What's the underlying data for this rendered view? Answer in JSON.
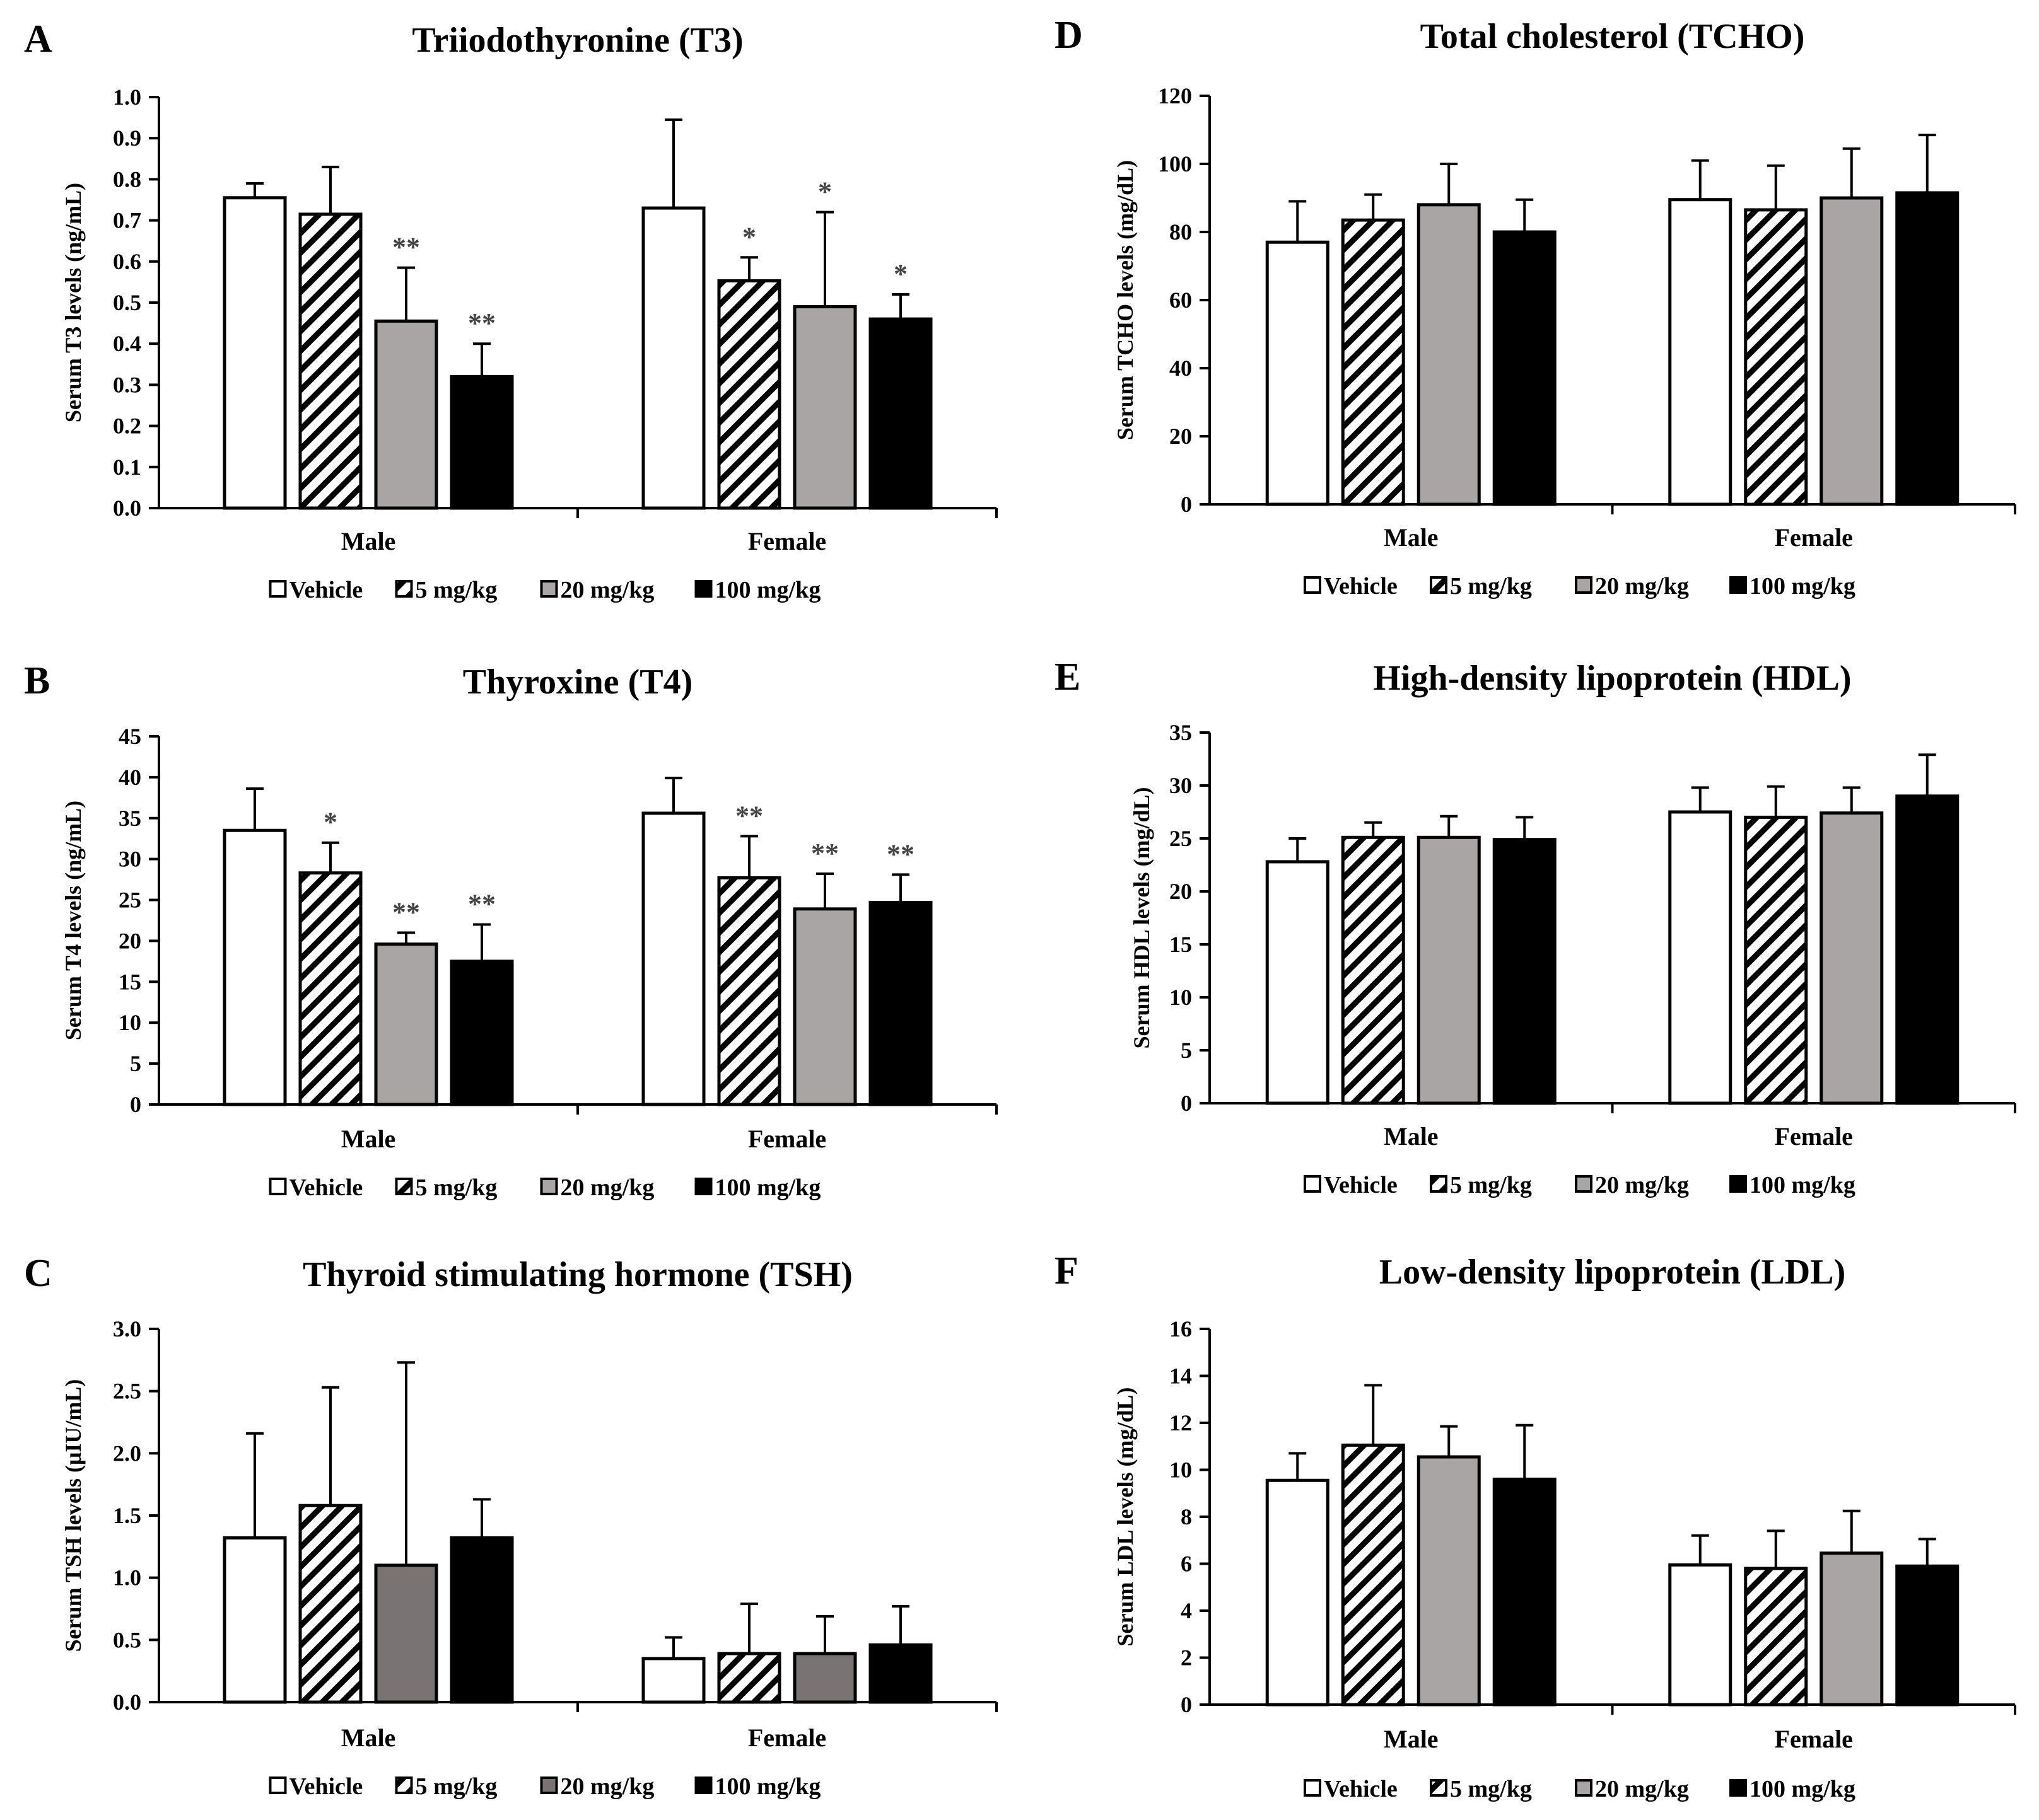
{
  "legend_labels": [
    "Vehicle",
    "5 mg/kg",
    "20 mg/kg",
    "100 mg/kg"
  ],
  "chart_data": [
    {
      "panel": "A",
      "type": "bar",
      "title": "Triiodothyronine (T3)",
      "ylabel": "Serum T3 levels (ng/mL)",
      "ylim": [
        0,
        1.0
      ],
      "yticks": [
        "0.0",
        "0.1",
        "0.2",
        "0.3",
        "0.4",
        "0.5",
        "0.6",
        "0.7",
        "0.8",
        "0.9",
        "1.0"
      ],
      "categories": [
        "Male",
        "Female"
      ],
      "series": [
        {
          "name": "Vehicle",
          "fill": "#ffffff",
          "pattern": "none",
          "values": [
            0.755,
            0.73
          ],
          "errors": [
            0.035,
            0.215
          ],
          "sig": [
            "",
            ""
          ]
        },
        {
          "name": "5 mg/kg",
          "fill": "#ffffff",
          "pattern": "hatch",
          "values": [
            0.715,
            0.553
          ],
          "errors": [
            0.115,
            0.057
          ],
          "sig": [
            "",
            "*"
          ]
        },
        {
          "name": "20 mg/kg",
          "fill": "#a9a5a4",
          "pattern": "none",
          "values": [
            0.455,
            0.49
          ],
          "errors": [
            0.13,
            0.23
          ],
          "sig": [
            "**",
            "*"
          ]
        },
        {
          "name": "100 mg/kg",
          "fill": "#000000",
          "pattern": "none",
          "values": [
            0.32,
            0.46
          ],
          "errors": [
            0.08,
            0.06
          ],
          "sig": [
            "**",
            "*"
          ]
        }
      ],
      "legend": "bottom"
    },
    {
      "panel": "B",
      "type": "bar",
      "title": "Thyroxine (T4)",
      "ylabel": "Serum T4 levels (ng/mL)",
      "ylim": [
        0,
        45
      ],
      "yticks": [
        "0",
        "5",
        "10",
        "15",
        "20",
        "25",
        "30",
        "35",
        "40",
        "45"
      ],
      "categories": [
        "Male",
        "Female"
      ],
      "series": [
        {
          "name": "Vehicle",
          "fill": "#ffffff",
          "pattern": "none",
          "values": [
            33.5,
            35.6
          ],
          "errors": [
            5.1,
            4.3
          ],
          "sig": [
            "",
            ""
          ]
        },
        {
          "name": "5 mg/kg",
          "fill": "#ffffff",
          "pattern": "hatch",
          "values": [
            28.3,
            27.7
          ],
          "errors": [
            3.7,
            5.1
          ],
          "sig": [
            "*",
            "**"
          ]
        },
        {
          "name": "20 mg/kg",
          "fill": "#a9a5a4",
          "pattern": "none",
          "values": [
            19.6,
            23.9
          ],
          "errors": [
            1.4,
            4.3
          ],
          "sig": [
            "**",
            "**"
          ]
        },
        {
          "name": "100 mg/kg",
          "fill": "#000000",
          "pattern": "none",
          "values": [
            17.5,
            24.7
          ],
          "errors": [
            4.5,
            3.4
          ],
          "sig": [
            "**",
            "**"
          ]
        }
      ],
      "legend": "bottom"
    },
    {
      "panel": "C",
      "type": "bar",
      "title": "Thyroid stimulating hormone (TSH)",
      "ylabel": "Serum TSH levels (μIU/mL)",
      "ylim": [
        0,
        3.0
      ],
      "yticks": [
        "0.0",
        "0.5",
        "1.0",
        "1.5",
        "2.0",
        "2.5",
        "3.0"
      ],
      "categories": [
        "Male",
        "Female"
      ],
      "series": [
        {
          "name": "Vehicle",
          "fill": "#ffffff",
          "pattern": "none",
          "values": [
            1.32,
            0.35
          ],
          "errors": [
            0.84,
            0.17
          ],
          "sig": [
            "",
            ""
          ]
        },
        {
          "name": "5 mg/kg",
          "fill": "#ffffff",
          "pattern": "hatch",
          "values": [
            1.58,
            0.39
          ],
          "errors": [
            0.95,
            0.4
          ],
          "sig": [
            "",
            ""
          ]
        },
        {
          "name": "20 mg/kg",
          "fill": "#7a7373",
          "pattern": "none",
          "values": [
            1.1,
            0.39
          ],
          "errors": [
            1.63,
            0.3
          ],
          "sig": [
            "",
            ""
          ]
        },
        {
          "name": "100 mg/kg",
          "fill": "#000000",
          "pattern": "none",
          "values": [
            1.32,
            0.46
          ],
          "errors": [
            0.31,
            0.31
          ],
          "sig": [
            "",
            ""
          ]
        }
      ],
      "legend": "bottom"
    },
    {
      "panel": "D",
      "type": "bar",
      "title": "Total cholesterol (TCHO)",
      "ylabel": "Serum TCHO levels (mg/dL)",
      "ylim": [
        0,
        120
      ],
      "yticks": [
        "0",
        "20",
        "40",
        "60",
        "80",
        "100",
        "120"
      ],
      "categories": [
        "Male",
        "Female"
      ],
      "series": [
        {
          "name": "Vehicle",
          "fill": "#ffffff",
          "pattern": "none",
          "values": [
            77,
            89.5
          ],
          "errors": [
            12,
            11.5
          ],
          "sig": [
            "",
            ""
          ]
        },
        {
          "name": "5 mg/kg",
          "fill": "#ffffff",
          "pattern": "hatch",
          "values": [
            83.5,
            86.5
          ],
          "errors": [
            7.5,
            13
          ],
          "sig": [
            "",
            ""
          ]
        },
        {
          "name": "20 mg/kg",
          "fill": "#a9a5a4",
          "pattern": "none",
          "values": [
            88,
            90
          ],
          "errors": [
            12,
            14.5
          ],
          "sig": [
            "",
            ""
          ]
        },
        {
          "name": "100 mg/kg",
          "fill": "#000000",
          "pattern": "none",
          "values": [
            80,
            91.5
          ],
          "errors": [
            9.5,
            17
          ],
          "sig": [
            "",
            ""
          ]
        }
      ],
      "legend": "bottom"
    },
    {
      "panel": "E",
      "type": "bar",
      "title": "High-density lipoprotein (HDL)",
      "ylabel": "Serum HDL levels (mg/dL)",
      "ylim": [
        0,
        35
      ],
      "yticks": [
        "0",
        "5",
        "10",
        "15",
        "20",
        "25",
        "30",
        "35"
      ],
      "categories": [
        "Male",
        "Female"
      ],
      "series": [
        {
          "name": "Vehicle",
          "fill": "#ffffff",
          "pattern": "none",
          "values": [
            22.8,
            27.5
          ],
          "errors": [
            2.2,
            2.3
          ],
          "sig": [
            "",
            ""
          ]
        },
        {
          "name": "5 mg/kg",
          "fill": "#ffffff",
          "pattern": "hatch",
          "values": [
            25.1,
            27
          ],
          "errors": [
            1.4,
            2.9
          ],
          "sig": [
            "",
            ""
          ]
        },
        {
          "name": "20 mg/kg",
          "fill": "#a9a5a4",
          "pattern": "none",
          "values": [
            25.1,
            27.4
          ],
          "errors": [
            2,
            2.4
          ],
          "sig": [
            "",
            ""
          ]
        },
        {
          "name": "100 mg/kg",
          "fill": "#000000",
          "pattern": "none",
          "values": [
            24.9,
            29
          ],
          "errors": [
            2.1,
            3.9
          ],
          "sig": [
            "",
            ""
          ]
        }
      ],
      "legend": "bottom"
    },
    {
      "panel": "F",
      "type": "bar",
      "title": "Low-density lipoprotein (LDL)",
      "ylabel": "Serum LDL levels (mg/dL)",
      "ylim": [
        0,
        16
      ],
      "yticks": [
        "0",
        "2",
        "4",
        "6",
        "8",
        "10",
        "12",
        "14",
        "16"
      ],
      "categories": [
        "Male",
        "Female"
      ],
      "series": [
        {
          "name": "Vehicle",
          "fill": "#ffffff",
          "pattern": "none",
          "values": [
            9.55,
            5.95
          ],
          "errors": [
            1.15,
            1.25
          ],
          "sig": [
            "",
            ""
          ]
        },
        {
          "name": "5 mg/kg",
          "fill": "#ffffff",
          "pattern": "hatch",
          "values": [
            11.05,
            5.8
          ],
          "errors": [
            2.55,
            1.6
          ],
          "sig": [
            "",
            ""
          ]
        },
        {
          "name": "20 mg/kg",
          "fill": "#a9a5a4",
          "pattern": "none",
          "values": [
            10.55,
            6.45
          ],
          "errors": [
            1.3,
            1.8
          ],
          "sig": [
            "",
            ""
          ]
        },
        {
          "name": "100 mg/kg",
          "fill": "#000000",
          "pattern": "none",
          "values": [
            9.6,
            5.9
          ],
          "errors": [
            2.3,
            1.15
          ],
          "sig": [
            "",
            ""
          ]
        }
      ],
      "legend": "bottom"
    }
  ]
}
